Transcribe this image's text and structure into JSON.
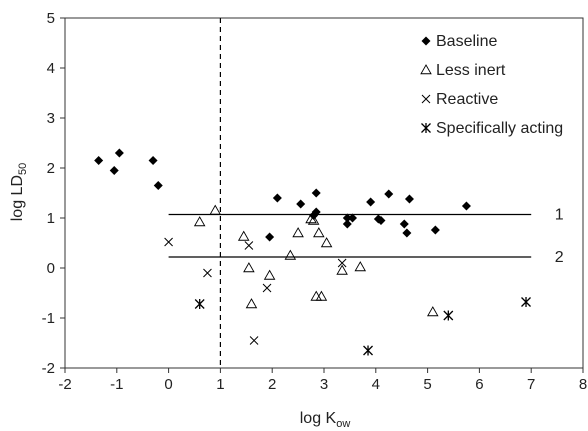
{
  "chart_data": {
    "type": "scatter",
    "xlim": [
      -2,
      8
    ],
    "ylim": [
      -2,
      5
    ],
    "xticks": [
      "-2",
      "-1",
      "0",
      "1",
      "2",
      "3",
      "4",
      "5",
      "6",
      "7",
      "8"
    ],
    "yticks": [
      "-2",
      "-1",
      "0",
      "1",
      "2",
      "3",
      "4",
      "5"
    ],
    "xlabel": {
      "main": "log K",
      "sub": "ow"
    },
    "ylabel": {
      "main": "log LD",
      "sub": "50"
    },
    "grid": false,
    "legend_position": "top-right",
    "series": [
      {
        "name": "Baseline",
        "marker": "diamond",
        "color": "#000000",
        "points": [
          [
            -1.35,
            2.15
          ],
          [
            -1.05,
            1.95
          ],
          [
            -0.95,
            2.3
          ],
          [
            -0.3,
            2.15
          ],
          [
            -0.2,
            1.65
          ],
          [
            1.95,
            0.62
          ],
          [
            2.1,
            1.4
          ],
          [
            2.55,
            1.28
          ],
          [
            2.8,
            1.05
          ],
          [
            2.85,
            1.12
          ],
          [
            2.85,
            1.5
          ],
          [
            3.45,
            0.88
          ],
          [
            3.45,
            1.0
          ],
          [
            3.55,
            1.0
          ],
          [
            3.9,
            1.32
          ],
          [
            4.05,
            0.98
          ],
          [
            4.1,
            0.95
          ],
          [
            4.25,
            1.48
          ],
          [
            4.55,
            0.88
          ],
          [
            4.6,
            0.7
          ],
          [
            4.65,
            1.38
          ],
          [
            5.15,
            0.76
          ],
          [
            5.75,
            1.24
          ]
        ]
      },
      {
        "name": "Less inert",
        "marker": "triangle",
        "color": "#000000",
        "points": [
          [
            0.6,
            0.92
          ],
          [
            0.9,
            1.15
          ],
          [
            1.45,
            0.63
          ],
          [
            1.55,
            0.0
          ],
          [
            1.6,
            -0.72
          ],
          [
            1.95,
            -0.15
          ],
          [
            2.35,
            0.25
          ],
          [
            2.5,
            0.7
          ],
          [
            2.75,
            0.98
          ],
          [
            2.8,
            0.95
          ],
          [
            2.85,
            -0.57
          ],
          [
            2.9,
            0.7
          ],
          [
            2.95,
            -0.57
          ],
          [
            3.05,
            0.5
          ],
          [
            3.35,
            -0.05
          ],
          [
            3.7,
            0.02
          ],
          [
            5.1,
            -0.88
          ]
        ]
      },
      {
        "name": "Reactive",
        "marker": "cross",
        "color": "#000000",
        "points": [
          [
            0.0,
            0.52
          ],
          [
            0.75,
            -0.1
          ],
          [
            1.55,
            0.45
          ],
          [
            1.65,
            -1.45
          ],
          [
            1.9,
            -0.4
          ],
          [
            3.35,
            0.1
          ]
        ]
      },
      {
        "name": "Specifically acting",
        "marker": "asterisk",
        "color": "#000000",
        "points": [
          [
            0.6,
            -0.72
          ],
          [
            3.85,
            -1.65
          ],
          [
            5.4,
            -0.95
          ],
          [
            6.9,
            -0.68
          ]
        ]
      }
    ],
    "reference_lines": [
      {
        "label": "1",
        "y": 1.07,
        "x_from": 0.0,
        "x_to": 7.0
      },
      {
        "label": "2",
        "y": 0.22,
        "x_from": 0.0,
        "x_to": 7.0
      }
    ],
    "vertical_reference": {
      "x": 1.0,
      "style": "dashed"
    }
  }
}
